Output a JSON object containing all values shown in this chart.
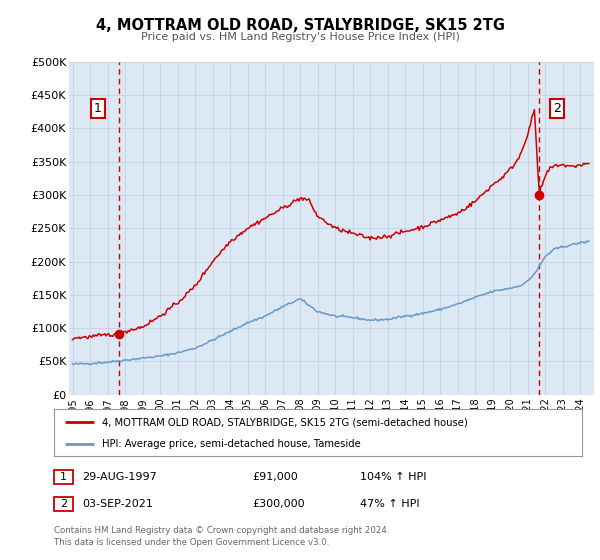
{
  "title": "4, MOTTRAM OLD ROAD, STALYBRIDGE, SK15 2TG",
  "subtitle": "Price paid vs. HM Land Registry's House Price Index (HPI)",
  "legend_line1": "4, MOTTRAM OLD ROAD, STALYBRIDGE, SK15 2TG (semi-detached house)",
  "legend_line2": "HPI: Average price, semi-detached house, Tameside",
  "note_line1": "Contains HM Land Registry data © Crown copyright and database right 2024.",
  "note_line2": "This data is licensed under the Open Government Licence v3.0.",
  "transaction1_date": "29-AUG-1997",
  "transaction1_price": "£91,000",
  "transaction1_hpi": "104% ↑ HPI",
  "transaction2_date": "03-SEP-2021",
  "transaction2_price": "£300,000",
  "transaction2_hpi": "47% ↑ HPI",
  "red_color": "#cc0000",
  "blue_color": "#6699cc",
  "bg_color": "#dde8f5",
  "plot_bg": "#ffffff",
  "grid_color": "#c8d4e8",
  "marker1_x": 1997.66,
  "marker1_y": 91000,
  "marker2_x": 2021.67,
  "marker2_y": 300000,
  "vline1_x": 1997.66,
  "vline2_x": 2021.67,
  "xmin": 1994.8,
  "xmax": 2024.8,
  "ymin": 0,
  "ymax": 500000,
  "yticks": [
    0,
    50000,
    100000,
    150000,
    200000,
    250000,
    300000,
    350000,
    400000,
    450000,
    500000
  ],
  "ytick_labels": [
    "£0",
    "£50K",
    "£100K",
    "£150K",
    "£200K",
    "£250K",
    "£300K",
    "£350K",
    "£400K",
    "£450K",
    "£500K"
  ],
  "xticks": [
    1995,
    1996,
    1997,
    1998,
    1999,
    2000,
    2001,
    2002,
    2003,
    2004,
    2005,
    2006,
    2007,
    2008,
    2009,
    2010,
    2011,
    2012,
    2013,
    2014,
    2015,
    2016,
    2017,
    2018,
    2019,
    2020,
    2021,
    2022,
    2023,
    2024
  ]
}
